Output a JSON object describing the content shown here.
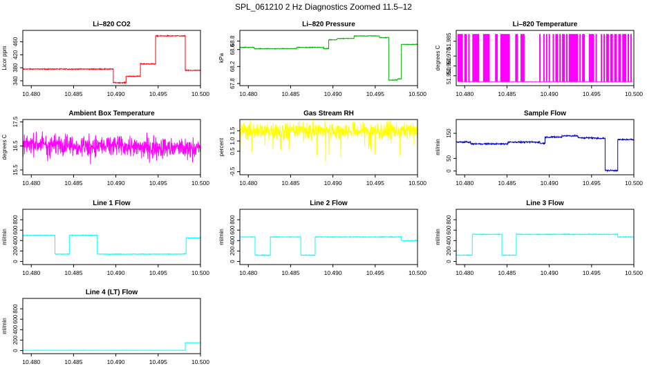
{
  "title": "SPL_061210  2 Hz Diagnostics Zoomed 11.5–12",
  "chart_data": [
    {
      "type": "line",
      "title": "Li–820 CO2",
      "ylabel": "Licor ppm",
      "color": "#ff0000",
      "xlim": [
        10.479,
        10.5
      ],
      "ylim": [
        325,
        495
      ],
      "xticks": [
        "10.480",
        "10.485",
        "10.490",
        "10.495",
        "10.500"
      ],
      "yticks": [
        "340",
        "380",
        "420",
        "460"
      ],
      "yticks_values": [
        340,
        380,
        420,
        460
      ],
      "noise": 1,
      "x": [
        10.479,
        10.4897,
        10.4897,
        10.4912,
        10.4912,
        10.4929,
        10.4929,
        10.4947,
        10.4947,
        10.4982,
        10.4982,
        10.5
      ],
      "y": [
        376,
        376,
        334,
        334,
        354,
        354,
        392,
        392,
        478,
        478,
        372,
        372
      ]
    },
    {
      "type": "line",
      "title": "Li–820 Pressure",
      "ylabel": "kPa",
      "color": "#00b000",
      "xlim": [
        10.479,
        10.5
      ],
      "ylim": [
        67.75,
        69.05
      ],
      "xticks": [
        "10.480",
        "10.485",
        "10.490",
        "10.495",
        "10.500"
      ],
      "yticks": [
        "67.8",
        "68.2",
        "68.6",
        "68.8"
      ],
      "yticks_values": [
        67.8,
        68.2,
        68.6,
        68.8
      ],
      "noise": 0.006,
      "x": [
        10.479,
        10.4807,
        10.4807,
        10.4857,
        10.4857,
        10.4889,
        10.4889,
        10.4895,
        10.4895,
        10.4905,
        10.4905,
        10.4925,
        10.4925,
        10.4955,
        10.4955,
        10.4966,
        10.4966,
        10.4976,
        10.4976,
        10.4981,
        10.4981,
        10.5
      ],
      "y": [
        68.65,
        68.65,
        68.62,
        68.62,
        68.65,
        68.65,
        68.62,
        68.62,
        68.83,
        68.83,
        68.86,
        68.86,
        68.92,
        68.92,
        68.88,
        68.88,
        67.88,
        67.88,
        67.91,
        67.91,
        68.72,
        68.72
      ]
    },
    {
      "type": "line",
      "title": "Li–820 Temperature",
      "ylabel": "degrees C",
      "color": "#ff00ff",
      "xlim": [
        10.479,
        10.5
      ],
      "ylim": [
        51.94,
        51.996
      ],
      "xticks": [
        "10.480",
        "10.485",
        "10.490",
        "10.495",
        "10.500"
      ],
      "yticks": [
        "51.950",
        "51.960",
        "51.970",
        "51.985"
      ],
      "yticks_values": [
        51.95,
        51.96,
        51.97,
        51.985
      ],
      "toggle": [
        51.944,
        51.992
      ],
      "toggle_count": 130
    },
    {
      "type": "line",
      "title": "Ambient Box Temperature",
      "ylabel": "degrees C",
      "color": "#ff00ff",
      "xlim": [
        10.479,
        10.5
      ],
      "ylim": [
        15.3,
        17.6
      ],
      "xticks": [
        "10.480",
        "10.485",
        "10.490",
        "10.495",
        "10.500"
      ],
      "yticks": [
        "15.5",
        "16.5",
        "17.5"
      ],
      "yticks_values": [
        15.5,
        16.5,
        17.5
      ],
      "noise": 0.3,
      "x": [
        10.479,
        10.5
      ],
      "y": [
        16.6,
        16.4
      ]
    },
    {
      "type": "line",
      "title": "Gas Stream RH",
      "ylabel": "percent",
      "color": "#ffff00",
      "xlim": [
        10.479,
        10.5
      ],
      "ylim": [
        -0.65,
        2.05
      ],
      "xticks": [
        "10.480",
        "10.485",
        "10.490",
        "10.495",
        "10.500"
      ],
      "yticks": [
        "-0.5",
        "0.5",
        "1.0",
        "1.5"
      ],
      "yticks_values": [
        -0.5,
        0.5,
        1.0,
        1.5
      ],
      "noise": 0.3,
      "x": [
        10.479,
        10.5
      ],
      "y": [
        1.5,
        1.5
      ]
    },
    {
      "type": "line",
      "title": "Sample Flow",
      "ylabel": "ml/min",
      "color": "#0000cc",
      "xlim": [
        10.479,
        10.5
      ],
      "ylim": [
        -15,
        205
      ],
      "xticks": [
        "10.480",
        "10.485",
        "10.490",
        "10.495",
        "10.500"
      ],
      "yticks": [
        "0",
        "50",
        "150"
      ],
      "yticks_values": [
        0,
        50,
        150
      ],
      "noise": 2,
      "x": [
        10.479,
        10.4807,
        10.4807,
        10.4851,
        10.4851,
        10.4889,
        10.4889,
        10.4895,
        10.4895,
        10.4915,
        10.4915,
        10.4934,
        10.4934,
        10.4954,
        10.4954,
        10.4966,
        10.4966,
        10.4981,
        10.4981,
        10.5
      ],
      "y": [
        115,
        115,
        108,
        108,
        115,
        115,
        110,
        110,
        135,
        135,
        140,
        140,
        132,
        132,
        130,
        130,
        2,
        2,
        125,
        125
      ]
    },
    {
      "type": "line",
      "title": "Line 1 Flow",
      "ylabel": "ml/min",
      "color": "#00ffff",
      "xlim": [
        10.479,
        10.5
      ],
      "ylim": [
        -60,
        1000
      ],
      "xticks": [
        "10.480",
        "10.485",
        "10.490",
        "10.495",
        "10.500"
      ],
      "yticks": [
        "0",
        "200",
        "400",
        "600",
        "800"
      ],
      "yticks_values": [
        0,
        200,
        400,
        600,
        800
      ],
      "noise": 5,
      "x": [
        10.479,
        10.4828,
        10.4828,
        10.4845,
        10.4845,
        10.4878,
        10.4878,
        10.4981,
        10.4981,
        10.4983,
        10.4983,
        10.5
      ],
      "y": [
        500,
        500,
        140,
        140,
        500,
        500,
        140,
        140,
        150,
        150,
        450,
        450
      ]
    },
    {
      "type": "line",
      "title": "Line 2 Flow",
      "ylabel": "ml/min",
      "color": "#00ffff",
      "xlim": [
        10.479,
        10.5
      ],
      "ylim": [
        -60,
        1000
      ],
      "xticks": [
        "10.480",
        "10.485",
        "10.490",
        "10.495",
        "10.500"
      ],
      "yticks": [
        "0",
        "200",
        "400",
        "600",
        "800"
      ],
      "yticks_values": [
        0,
        200,
        400,
        600,
        800
      ],
      "noise": 5,
      "x": [
        10.479,
        10.4808,
        10.4808,
        10.4826,
        10.4826,
        10.4862,
        10.4862,
        10.4879,
        10.4879,
        10.4981,
        10.4981,
        10.5
      ],
      "y": [
        470,
        470,
        120,
        120,
        470,
        470,
        120,
        120,
        470,
        470,
        400,
        400
      ]
    },
    {
      "type": "line",
      "title": "Line 3 Flow",
      "ylabel": "ml/min",
      "color": "#00ffff",
      "xlim": [
        10.479,
        10.5
      ],
      "ylim": [
        -60,
        1000
      ],
      "xticks": [
        "10.480",
        "10.485",
        "10.490",
        "10.495",
        "10.500"
      ],
      "yticks": [
        "0",
        "200",
        "400",
        "600",
        "800"
      ],
      "yticks_values": [
        0,
        200,
        400,
        600,
        800
      ],
      "noise": 5,
      "x": [
        10.479,
        10.4809,
        10.4809,
        10.4844,
        10.4844,
        10.4861,
        10.4861,
        10.4981,
        10.4981,
        10.5
      ],
      "y": [
        120,
        120,
        520,
        520,
        120,
        120,
        520,
        520,
        470,
        470
      ]
    },
    {
      "type": "line",
      "title": "Line 4 (LT) Flow",
      "ylabel": "ml/min",
      "color": "#00ffff",
      "xlim": [
        10.479,
        10.5
      ],
      "ylim": [
        -60,
        1000
      ],
      "xticks": [
        "10.480",
        "10.485",
        "10.490",
        "10.495",
        "10.500"
      ],
      "yticks": [
        "0",
        "200",
        "400",
        "600",
        "800"
      ],
      "yticks_values": [
        0,
        200,
        400,
        600,
        800
      ],
      "noise": 2,
      "x": [
        10.479,
        10.4982,
        10.4982,
        10.5
      ],
      "y": [
        5,
        5,
        150,
        150
      ]
    }
  ]
}
